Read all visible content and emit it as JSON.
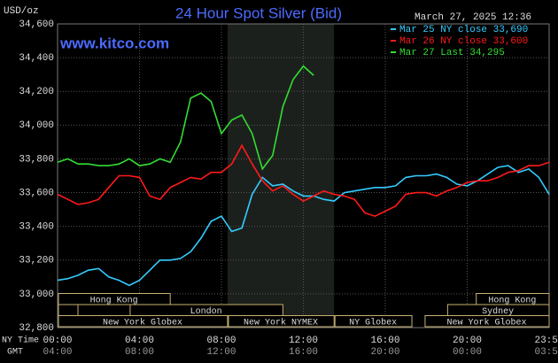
{
  "chart_data": {
    "type": "line",
    "title": "24 Hour Spot Silver (Bid)",
    "y_unit": "USD/oz",
    "source": "www.kitco.com",
    "timestamp": "March 27, 2025 12:36",
    "x_axis_label": "NY Time",
    "x2_axis_label": "GMT",
    "x": [
      0,
      0.5,
      1,
      1.5,
      2,
      2.5,
      3,
      3.5,
      4,
      4.5,
      5,
      5.5,
      6,
      6.5,
      7,
      7.5,
      8,
      8.5,
      9,
      9.5,
      10,
      10.5,
      11,
      11.5,
      12,
      12.5,
      13,
      13.5,
      14,
      14.5,
      15,
      15.5,
      16,
      16.5,
      17,
      17.5,
      18,
      18.5,
      19,
      19.5,
      20,
      20.5,
      21,
      21.5,
      22,
      22.5,
      23,
      23.5,
      24
    ],
    "series": [
      {
        "name": "Mar 25 NY close 33,690",
        "color": "#33ccff",
        "values": [
          33080,
          33090,
          33110,
          33140,
          33150,
          33100,
          33080,
          33050,
          33080,
          33140,
          33200,
          33200,
          33210,
          33250,
          33330,
          33430,
          33460,
          33370,
          33390,
          33590,
          33690,
          33640,
          33650,
          33610,
          33580,
          33580,
          33560,
          33550,
          33600,
          33610,
          33620,
          33630,
          33630,
          33640,
          33690,
          33700,
          33700,
          33710,
          33690,
          33650,
          33640,
          33670,
          33710,
          33750,
          33760,
          33720,
          33740,
          33690,
          33590
        ]
      },
      {
        "name": "Mar 26 NY close 33,600",
        "color": "#ff1a1a",
        "values": [
          33590,
          33560,
          33530,
          33540,
          33560,
          33630,
          33700,
          33700,
          33690,
          33580,
          33560,
          33630,
          33660,
          33690,
          33680,
          33720,
          33720,
          33770,
          33880,
          33770,
          33670,
          33610,
          33640,
          33590,
          33550,
          33580,
          33610,
          33590,
          33580,
          33560,
          33480,
          33460,
          33490,
          33520,
          33590,
          33600,
          33600,
          33580,
          33610,
          33630,
          33660,
          33670,
          33670,
          33690,
          33720,
          33730,
          33760,
          33760,
          33780
        ]
      },
      {
        "name": "Mar 27 Last 34,295",
        "color": "#33dd33",
        "values": [
          33780,
          33800,
          33770,
          33770,
          33760,
          33760,
          33770,
          33800,
          33760,
          33770,
          33800,
          33780,
          33900,
          34160,
          34190,
          34140,
          33950,
          34030,
          34060,
          33950,
          33740,
          33820,
          34110,
          34270,
          34350,
          34295,
          null,
          null,
          null,
          null,
          null,
          null,
          null,
          null,
          null,
          null,
          null,
          null,
          null,
          null,
          null,
          null,
          null,
          null,
          null,
          null,
          null,
          null,
          null
        ]
      }
    ],
    "xlim": [
      0,
      24
    ],
    "xticks": [
      {
        "value": 0,
        "label": "00:00"
      },
      {
        "value": 4,
        "label": "04:00"
      },
      {
        "value": 8,
        "label": "08:00"
      },
      {
        "value": 12,
        "label": "12:00"
      },
      {
        "value": 16,
        "label": "16:00"
      },
      {
        "value": 20,
        "label": "20:00"
      },
      {
        "value": 24,
        "label": "23:59"
      }
    ],
    "gmt_tick_labels": [
      "04:00",
      "08:00",
      "12:00",
      "16:00",
      "20:00",
      "00:00",
      "03:59"
    ],
    "ylim": [
      32800,
      34600
    ],
    "yticks": [
      {
        "value": 32800,
        "label": "32,800"
      },
      {
        "value": 33000,
        "label": "33,000"
      },
      {
        "value": 33200,
        "label": "33,200"
      },
      {
        "value": 33400,
        "label": "33,400"
      },
      {
        "value": 33600,
        "label": "33,600"
      },
      {
        "value": 33800,
        "label": "33,800"
      },
      {
        "value": 34000,
        "label": "34,000"
      },
      {
        "value": 34200,
        "label": "34,200"
      },
      {
        "value": 34400,
        "label": "34,400"
      },
      {
        "value": 34600,
        "label": "34,600"
      }
    ],
    "grid": true,
    "shaded_session": [
      8.3,
      13.5
    ],
    "sessions": [
      {
        "name": "Hong Kong",
        "start": 0,
        "end": 5.5,
        "row": 2
      },
      {
        "name": "London",
        "start": 3.5,
        "end": 11,
        "row": 1
      },
      {
        "name": "New York Globex",
        "start": 0,
        "end": 8.3,
        "row": 0
      },
      {
        "name": "New York NYMEX",
        "start": 8.3,
        "end": 13.5,
        "row": 0
      },
      {
        "name": "NY Globex",
        "start": 13.5,
        "end": 17.3,
        "row": 0
      },
      {
        "name": "New York Globex",
        "start": 17.9,
        "end": 24,
        "row": 0
      },
      {
        "name": "Sydney",
        "start": 19,
        "end": 24,
        "row": 1
      },
      {
        "name": "Hong Kong",
        "start": 20.4,
        "end": 24,
        "row": 2
      }
    ]
  }
}
